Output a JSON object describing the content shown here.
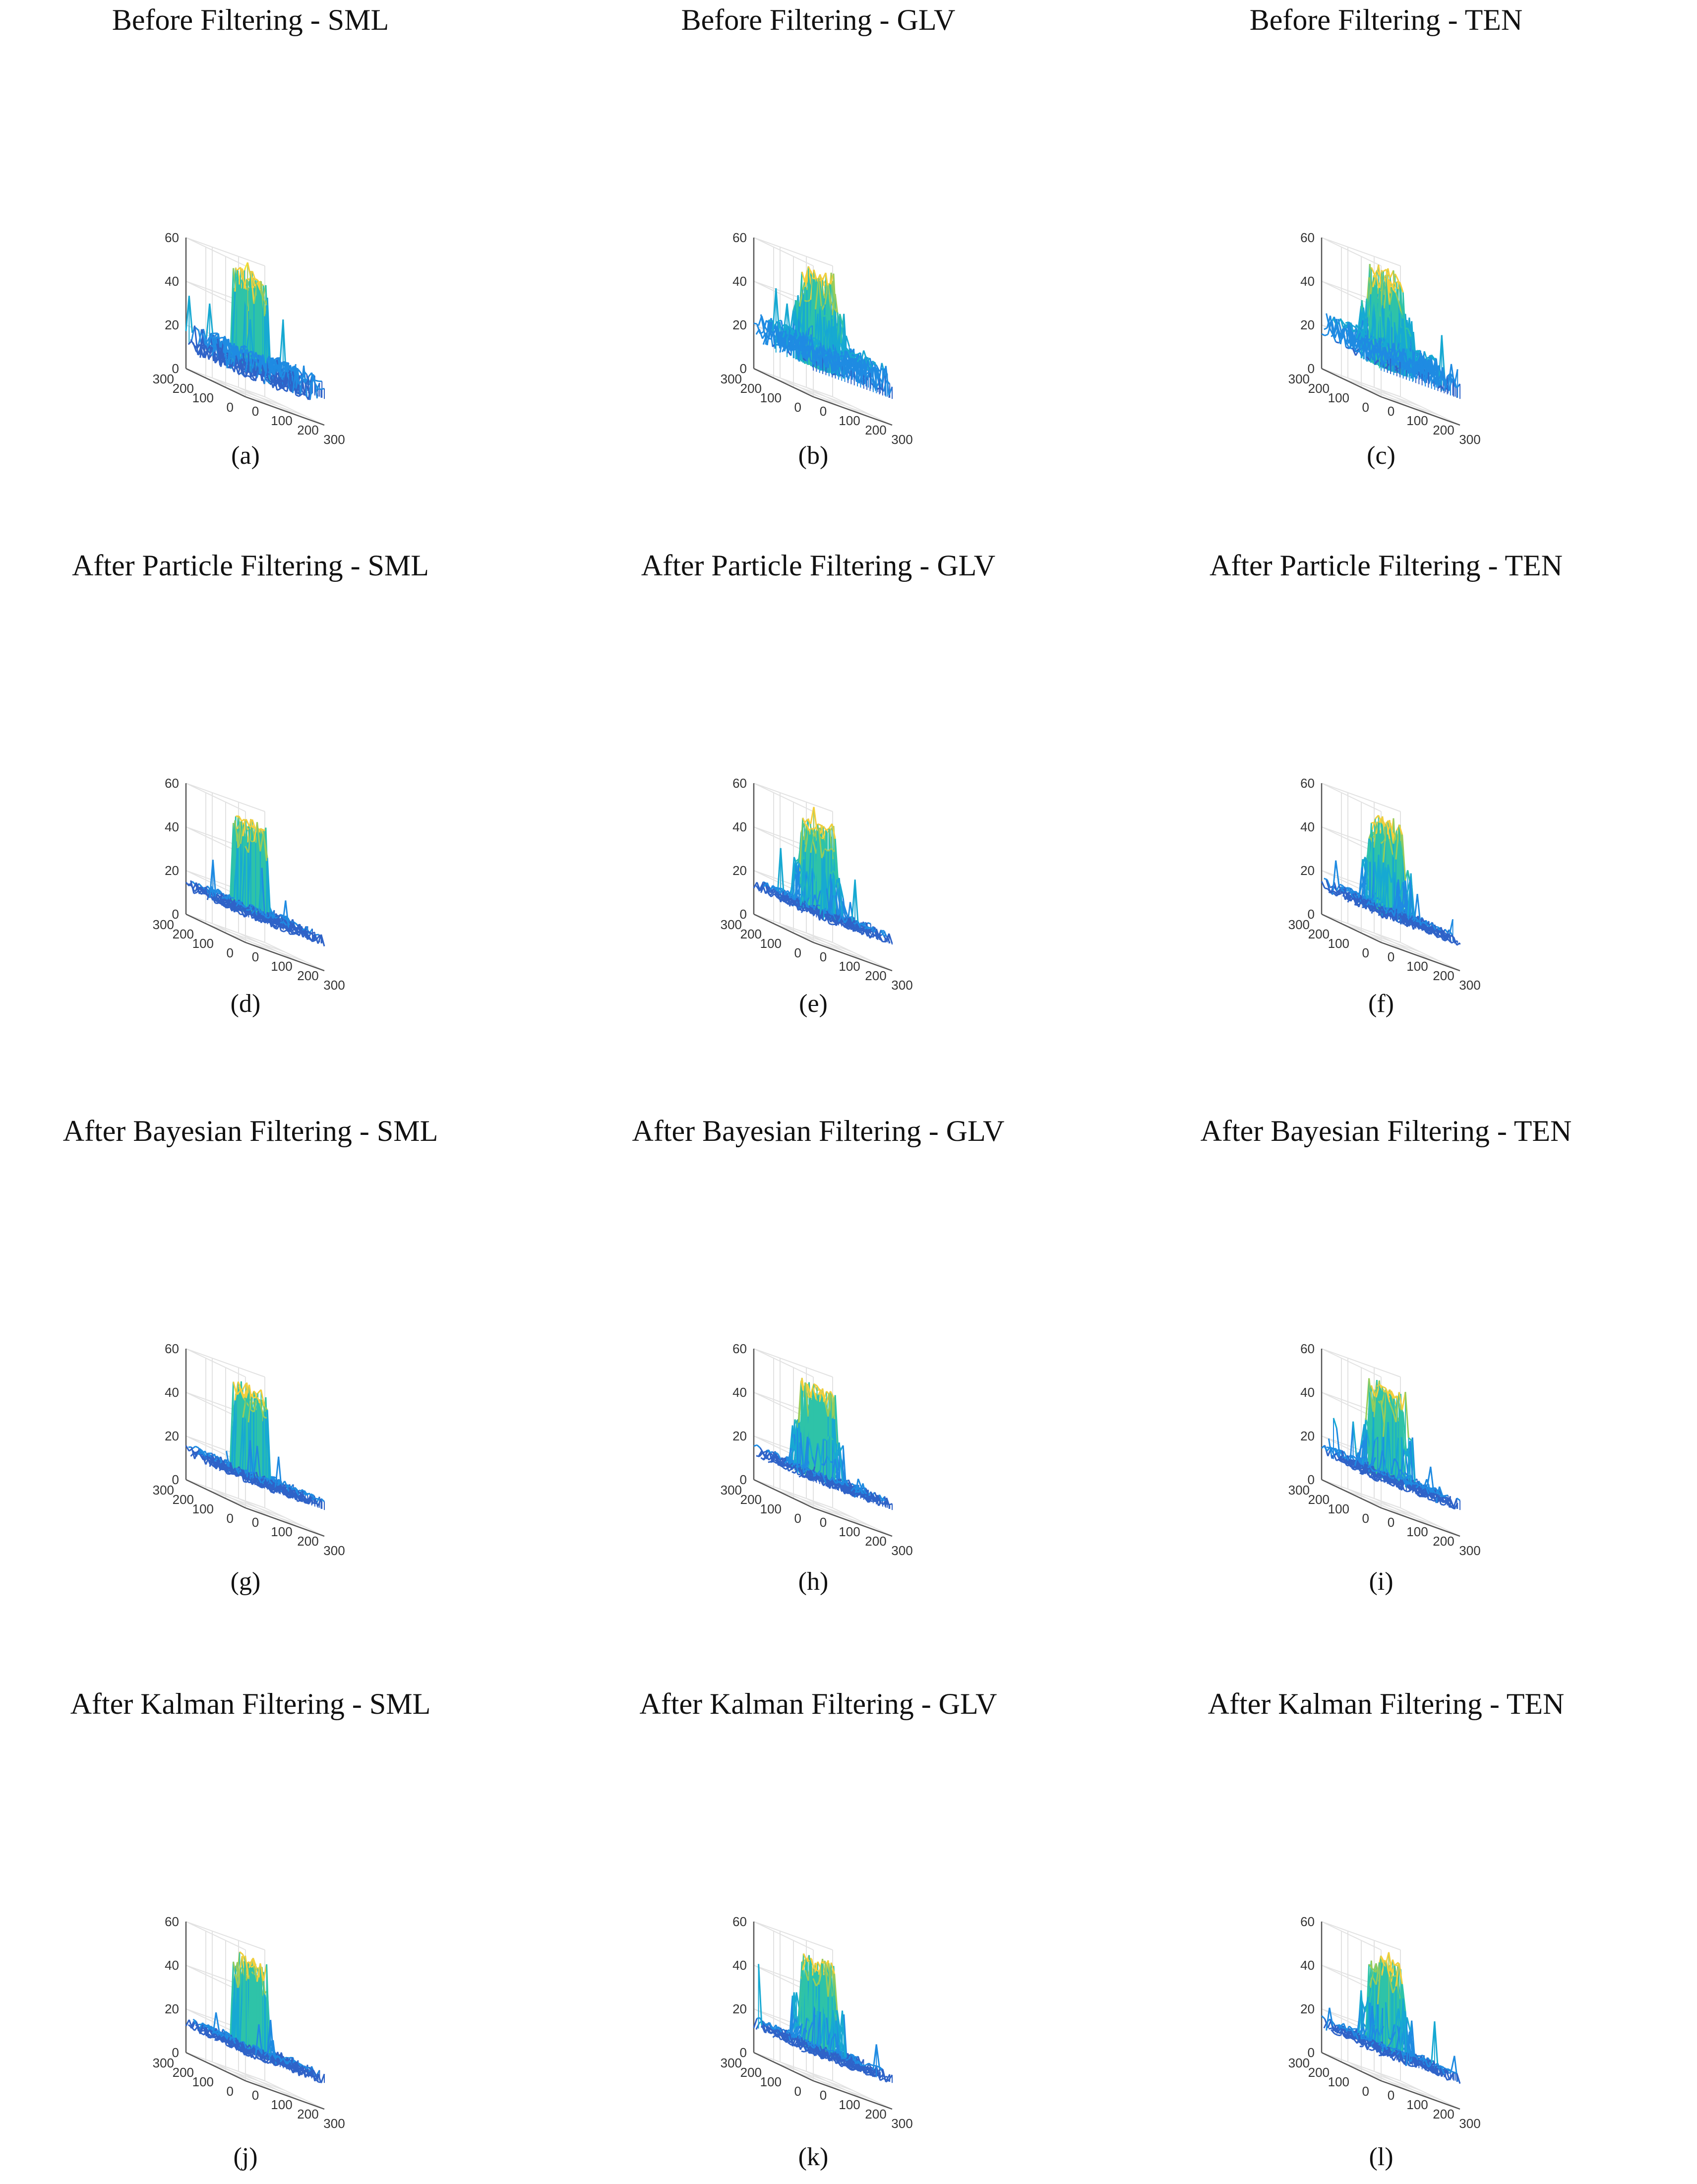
{
  "figure": {
    "panels": [
      {
        "id": "a",
        "title": "Before Filtering - SML",
        "caption": "(a)",
        "metric": "SML",
        "stage": "before"
      },
      {
        "id": "b",
        "title": "Before Filtering - GLV",
        "caption": "(b)",
        "metric": "GLV",
        "stage": "before"
      },
      {
        "id": "c",
        "title": "Before Filtering - TEN",
        "caption": "(c)",
        "metric": "TEN",
        "stage": "before"
      },
      {
        "id": "d",
        "title": "After Particle Filtering - SML",
        "caption": "(d)",
        "metric": "SML",
        "stage": "after"
      },
      {
        "id": "e",
        "title": "After Particle Filtering - GLV",
        "caption": "(e)",
        "metric": "GLV",
        "stage": "after"
      },
      {
        "id": "f",
        "title": "After Particle Filtering - TEN",
        "caption": "(f)",
        "metric": "TEN",
        "stage": "after"
      },
      {
        "id": "g",
        "title": "After Bayesian Filtering - SML",
        "caption": "(g)",
        "metric": "SML",
        "stage": "after"
      },
      {
        "id": "h",
        "title": "After Bayesian Filtering - GLV",
        "caption": "(h)",
        "metric": "GLV",
        "stage": "after"
      },
      {
        "id": "i",
        "title": "After Bayesian Filtering - TEN",
        "caption": "(i)",
        "metric": "TEN",
        "stage": "after"
      },
      {
        "id": "j",
        "title": "After Kalman Filtering - SML",
        "caption": "(j)",
        "metric": "SML",
        "stage": "after"
      },
      {
        "id": "k",
        "title": "After Kalman Filtering - GLV",
        "caption": "(k)",
        "metric": "GLV",
        "stage": "after"
      },
      {
        "id": "l",
        "title": "After Kalman Filtering - TEN",
        "caption": "(l)",
        "metric": "TEN",
        "stage": "after"
      }
    ]
  },
  "chart_data": {
    "type": "surface",
    "zlim": [
      0,
      60
    ],
    "z_ticks": [
      "0",
      "20",
      "40",
      "60"
    ],
    "xlim": [
      0,
      300
    ],
    "x_ticks": [
      "0",
      "100",
      "200",
      "300"
    ],
    "ylim": [
      0,
      300
    ],
    "y_ticks": [
      "0",
      "100",
      "200",
      "300"
    ],
    "grid": true,
    "colormap": [
      "#3e26a8",
      "#2f63c8",
      "#1f8be2",
      "#17a9d2",
      "#2ec3a8",
      "#98cc5a",
      "#f4cf3c",
      "#f9e734"
    ]
  }
}
